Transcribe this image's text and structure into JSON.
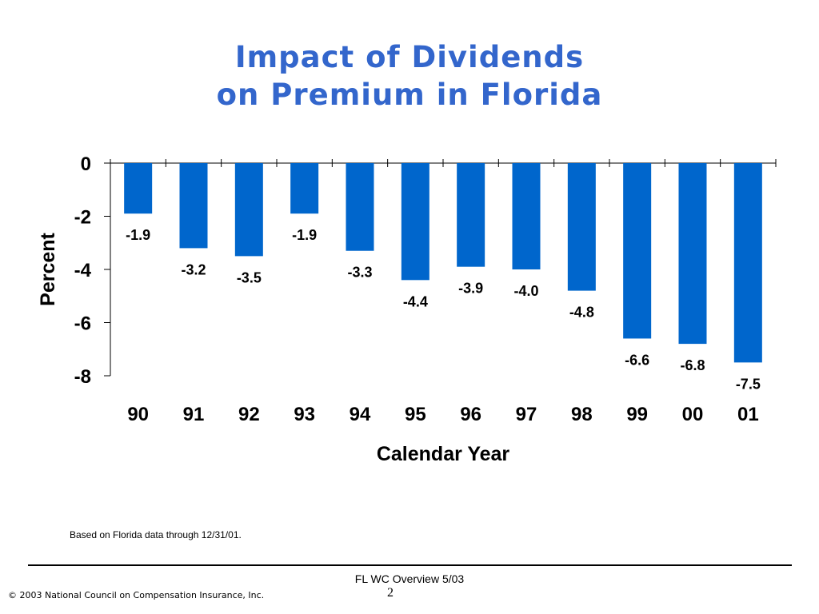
{
  "slide": {
    "title_line1": "Impact of Dividends",
    "title_line2": "on Premium in Florida",
    "footnote": "Based on Florida data through 12/31/01.",
    "footer_center": "FL WC Overview 5/03",
    "page_number": "2",
    "copyright": "© 2003 National Council on Compensation Insurance, Inc."
  },
  "chart_data": {
    "type": "bar",
    "categories": [
      "90",
      "91",
      "92",
      "93",
      "94",
      "95",
      "96",
      "97",
      "98",
      "99",
      "00",
      "01"
    ],
    "values": [
      -1.9,
      -3.2,
      -3.5,
      -1.9,
      -3.3,
      -4.4,
      -3.9,
      -4.0,
      -4.8,
      -6.6,
      -6.8,
      -7.5
    ],
    "value_labels": [
      "-1.9",
      "-3.2",
      "-3.5",
      "-1.9",
      "-3.3",
      "-4.4",
      "-3.9",
      "-4.0",
      "-4.8",
      "-6.6",
      "-6.8",
      "-7.5"
    ],
    "xlabel": "Calendar Year",
    "ylabel": "Percent",
    "ylim": [
      -8,
      0
    ],
    "yticks": [
      0,
      -2,
      -4,
      -6,
      -8
    ],
    "grid": false,
    "bar_color": "#0066cc"
  }
}
